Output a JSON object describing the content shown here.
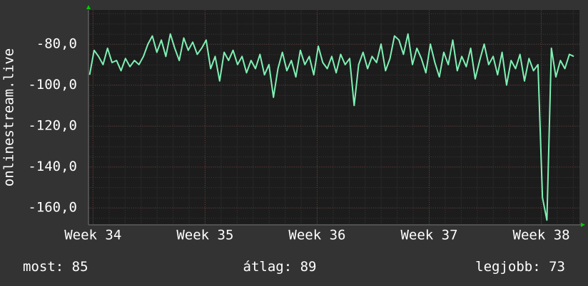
{
  "chart_data": {
    "type": "line",
    "ylabel": "onlinestream.live",
    "x": [
      33.97,
      34.01,
      34.05,
      34.09,
      34.13,
      34.17,
      34.21,
      34.25,
      34.29,
      34.33,
      34.37,
      34.41,
      34.45,
      34.49,
      34.53,
      34.57,
      34.61,
      34.65,
      34.69,
      34.73,
      34.77,
      34.81,
      34.85,
      34.89,
      34.93,
      34.97,
      35.01,
      35.05,
      35.09,
      35.13,
      35.17,
      35.21,
      35.25,
      35.29,
      35.33,
      35.37,
      35.41,
      35.45,
      35.49,
      35.53,
      35.57,
      35.61,
      35.65,
      35.69,
      35.73,
      35.77,
      35.81,
      35.85,
      35.89,
      35.93,
      35.97,
      36.01,
      36.05,
      36.09,
      36.13,
      36.17,
      36.21,
      36.25,
      36.29,
      36.33,
      36.37,
      36.41,
      36.45,
      36.49,
      36.53,
      36.57,
      36.61,
      36.65,
      36.69,
      36.73,
      36.77,
      36.81,
      36.85,
      36.89,
      36.93,
      36.97,
      37.01,
      37.05,
      37.09,
      37.13,
      37.17,
      37.21,
      37.25,
      37.29,
      37.33,
      37.37,
      37.41,
      37.45,
      37.49,
      37.53,
      37.57,
      37.61,
      37.65,
      37.69,
      37.73,
      37.77,
      37.81,
      37.85,
      37.89,
      37.93,
      37.97,
      38.01,
      38.05,
      38.09,
      38.13,
      38.17,
      38.21,
      38.25,
      38.29
    ],
    "series": [
      {
        "color": "#7ff0b4",
        "values": [
          -95,
          -83,
          -86,
          -90,
          -82,
          -89,
          -88,
          -93,
          -87,
          -91,
          -88,
          -90,
          -86,
          -80,
          -76,
          -84,
          -78,
          -86,
          -75,
          -82,
          -88,
          -77,
          -83,
          -79,
          -85,
          -82,
          -78,
          -92,
          -86,
          -98,
          -84,
          -88,
          -83,
          -90,
          -86,
          -94,
          -88,
          -92,
          -85,
          -95,
          -90,
          -106,
          -92,
          -84,
          -93,
          -88,
          -96,
          -83,
          -90,
          -86,
          -95,
          -81,
          -89,
          -92,
          -86,
          -94,
          -85,
          -90,
          -87,
          -110,
          -90,
          -84,
          -92,
          -86,
          -89,
          -80,
          -93,
          -87,
          -76,
          -78,
          -85,
          -75,
          -90,
          -82,
          -87,
          -94,
          -80,
          -89,
          -96,
          -84,
          -90,
          -78,
          -93,
          -86,
          -91,
          -82,
          -97,
          -88,
          -80,
          -90,
          -86,
          -95,
          -84,
          -100,
          -88,
          -92,
          -85,
          -98,
          -87,
          -93,
          -90,
          -155,
          -166,
          -82,
          -96,
          -88,
          -92,
          -85,
          -86
        ]
      }
    ],
    "xlim": [
      33.96,
      38.34
    ],
    "xticks": [
      {
        "value": 34,
        "label": "Week 34"
      },
      {
        "value": 35,
        "label": "Week 35"
      },
      {
        "value": 36,
        "label": "Week 36"
      },
      {
        "value": 37,
        "label": "Week 37"
      },
      {
        "value": 38,
        "label": "Week 38"
      }
    ],
    "ylim": [
      -168.3,
      -63.3
    ],
    "yticks": [
      {
        "value": -160,
        "label": "-160,0"
      },
      {
        "value": -140,
        "label": "-140,0"
      },
      {
        "value": -120,
        "label": "-120,0"
      },
      {
        "value": -100,
        "label": "-100,0"
      },
      {
        "value": -80,
        "label": "-80,0"
      }
    ],
    "grid": true,
    "stats": [
      {
        "label": "most:",
        "value": 85
      },
      {
        "label": "átlag:",
        "value": 89
      },
      {
        "label": "legjobb:",
        "value": 73
      }
    ]
  }
}
